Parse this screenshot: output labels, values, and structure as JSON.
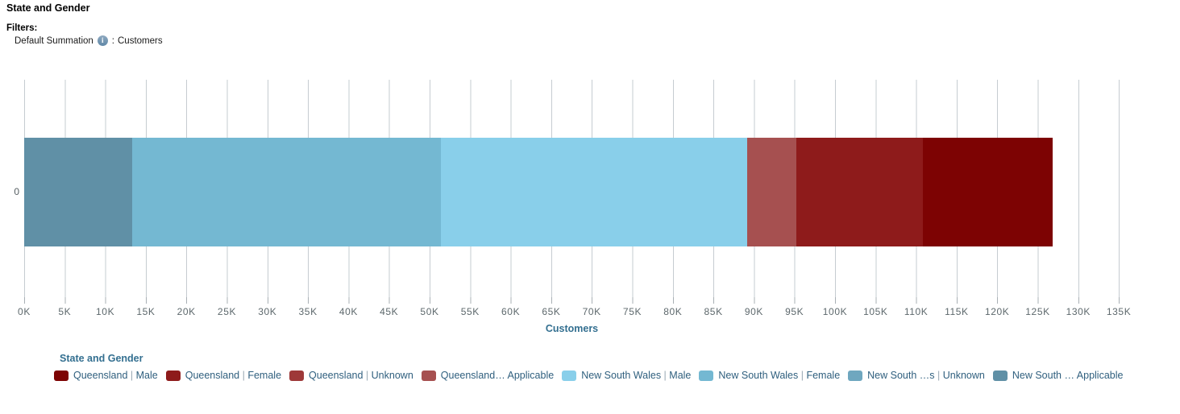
{
  "page": {
    "title": "State and Gender"
  },
  "filters": {
    "heading": "Filters:",
    "items": [
      {
        "name": "Default Summation",
        "icon": "info-icon",
        "icon_glyph": "i",
        "separator": ":",
        "value": "Customers"
      }
    ]
  },
  "chart_data": {
    "type": "bar",
    "orientation": "horizontal",
    "stacked": true,
    "title": "State and Gender",
    "xlabel": "Customers",
    "ylabel": "",
    "y_categories": [
      "0"
    ],
    "xlim": [
      0,
      135000
    ],
    "x_tick_step": 5000,
    "x_tick_labels": [
      "0K",
      "5K",
      "10K",
      "15K",
      "20K",
      "25K",
      "30K",
      "35K",
      "40K",
      "45K",
      "50K",
      "55K",
      "60K",
      "65K",
      "70K",
      "75K",
      "80K",
      "85K",
      "90K",
      "95K",
      "100K",
      "105K",
      "110K",
      "115K",
      "120K",
      "125K",
      "130K",
      "135K"
    ],
    "grid": "vertical",
    "legend_position": "bottom",
    "bar_stack_order": "reverse_of_legend",
    "total_estimate": 126800,
    "series": [
      {
        "name": "Queensland | Male",
        "value": 16000,
        "color": "#7D0303"
      },
      {
        "name": "Queensland | Female",
        "value": 15600,
        "color": "#8E1B1B"
      },
      {
        "name": "Queensland | Unknown",
        "value": 0,
        "color": "#9E3939"
      },
      {
        "name": "Queensland… Applicable",
        "value": 6000,
        "color": "#A65050"
      },
      {
        "name": "New South Wales | Male",
        "value": 37800,
        "color": "#89CFEA"
      },
      {
        "name": "New South Wales | Female",
        "value": 38100,
        "color": "#74B8D2"
      },
      {
        "name": "New South …s | Unknown",
        "value": 0,
        "color": "#6FA7BF"
      },
      {
        "name": "New South … Applicable",
        "value": 13300,
        "color": "#6090A6"
      }
    ]
  },
  "legend": {
    "title": "State and Gender",
    "items": [
      {
        "state": "Queensland",
        "pipe": "|",
        "gender": "Male",
        "color": "#7D0303"
      },
      {
        "state": "Queensland",
        "pipe": "|",
        "gender": "Female",
        "color": "#8E1B1B"
      },
      {
        "state": "Queensland",
        "pipe": "|",
        "gender": "Unknown",
        "color": "#9E3939"
      },
      {
        "state": "Queensland…",
        "pipe": "",
        "gender": "Applicable",
        "color": "#A65050"
      },
      {
        "state": "New South Wales",
        "pipe": "|",
        "gender": "Male",
        "color": "#89CFEA"
      },
      {
        "state": "New South Wales",
        "pipe": "|",
        "gender": "Female",
        "color": "#74B8D2"
      },
      {
        "state": "New South …s",
        "pipe": "|",
        "gender": "Unknown",
        "color": "#6FA7BF"
      },
      {
        "state": "New South …",
        "pipe": "",
        "gender": "Applicable",
        "color": "#6090A6"
      }
    ]
  }
}
